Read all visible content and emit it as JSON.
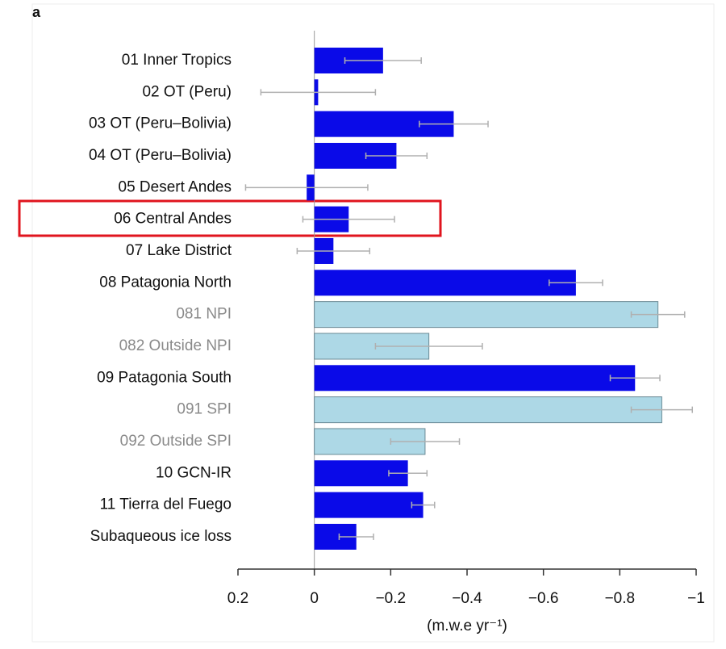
{
  "chart_data": {
    "type": "barh",
    "panel_label": "a",
    "xlabel": "(m.w.e yr⁻¹)",
    "categories": [
      "01 Inner Tropics",
      "02 OT (Peru)",
      "03 OT (Peru–Bolivia)",
      "04 OT (Peru–Bolivia)",
      "05 Desert Andes",
      "06 Central Andes",
      "07 Lake District",
      "08 Patagonia North",
      "081 NPI",
      "082 Outside NPI",
      "09 Patagonia South",
      "091 SPI",
      "092 Outside SPI",
      "10 GCN-IR",
      "11 Tierra del Fuego",
      "Subaqueous ice loss"
    ],
    "values": [
      -0.18,
      -0.01,
      -0.365,
      -0.215,
      0.02,
      -0.09,
      -0.05,
      -0.685,
      -0.9,
      -0.3,
      -0.84,
      -0.91,
      -0.29,
      -0.245,
      -0.285,
      -0.11
    ],
    "errors": [
      0.1,
      0.15,
      0.09,
      0.08,
      0.16,
      0.12,
      0.095,
      0.07,
      0.07,
      0.14,
      0.065,
      0.08,
      0.09,
      0.05,
      0.03,
      0.045
    ],
    "colors": [
      "#0a0ae8",
      "#0a0ae8",
      "#0a0ae8",
      "#0a0ae8",
      "#0a0ae8",
      "#0a0ae8",
      "#0a0ae8",
      "#0a0ae8",
      "#add8e6",
      "#add8e6",
      "#0a0ae8",
      "#add8e6",
      "#add8e6",
      "#0a0ae8",
      "#0a0ae8",
      "#0a0ae8"
    ],
    "label_colors": [
      "#111",
      "#111",
      "#111",
      "#111",
      "#111",
      "#111",
      "#111",
      "#111",
      "#8a8a8a",
      "#8a8a8a",
      "#111",
      "#8a8a8a",
      "#8a8a8a",
      "#111",
      "#111",
      "#111"
    ],
    "error_color": "#b0b0b0",
    "xlim": [
      0.2,
      -1
    ],
    "xticks": [
      0.2,
      0,
      {
        "value": -0.2,
        "label": "−0.2"
      },
      {
        "value": -0.4,
        "label": "−0.4"
      },
      {
        "value": -0.6,
        "label": "−0.6"
      },
      {
        "value": -0.8,
        "label": "−0.8"
      },
      {
        "value": -1,
        "label": "−1"
      }
    ]
  }
}
